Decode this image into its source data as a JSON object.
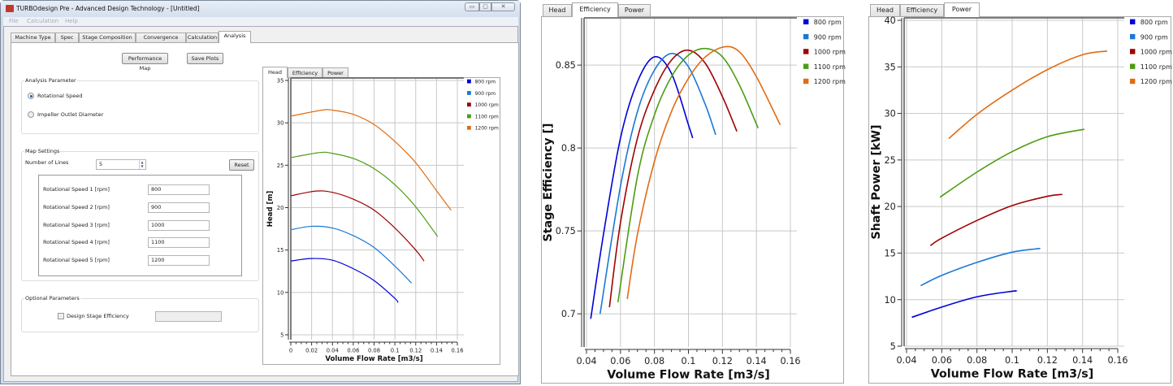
{
  "window": {
    "title": "TURBOdesign Pre - Advanced Design Technology - [Untitled]",
    "controls": {
      "minimize": "▭",
      "maximize": "▢",
      "close": "✕"
    },
    "menu": [
      "File",
      "Calculation",
      "Help"
    ],
    "tabs": [
      "Machine Type",
      "Spec",
      "Stage Composition",
      "Convergence",
      "Calculation",
      "Analysis"
    ],
    "active_tab": "Analysis"
  },
  "analysis": {
    "performance_map_button": "Performance Map",
    "save_plots_button": "Save Plots",
    "analysis_parameter": {
      "label": "Analysis Parameter",
      "options": [
        "Rotational Speed",
        "Impeller Outlet Diameter"
      ],
      "selected": "Rotational Speed"
    },
    "map_settings": {
      "label": "Map Settings",
      "number_of_lines_label": "Number of Lines",
      "number_of_lines": "5",
      "reset_button": "Reset",
      "speeds": [
        {
          "label": "Rotational Speed 1 [rpm]",
          "value": "800"
        },
        {
          "label": "Rotational Speed 2 [rpm]",
          "value": "900"
        },
        {
          "label": "Rotational Speed 3 [rpm]",
          "value": "1000"
        },
        {
          "label": "Rotational Speed 4 [rpm]",
          "value": "1100"
        },
        {
          "label": "Rotational Speed 5 [rpm]",
          "value": "1200"
        }
      ]
    },
    "optional": {
      "label": "Optional Parameters",
      "design_stage_efficiency_label": "Design Stage Efficiency",
      "design_stage_efficiency_checked": false,
      "design_stage_efficiency_value": ""
    }
  },
  "plot_tabs": [
    "Head",
    "Efficiency",
    "Power"
  ],
  "chart_data": [
    {
      "type": "line",
      "active_tab": "Head",
      "xlabel": "Volume Flow Rate [m3/s]",
      "ylabel": "Head [m]",
      "xlim": [
        0,
        0.16
      ],
      "ylim": [
        5,
        35
      ],
      "xticks": [
        "0",
        "0.02",
        "0.04",
        "0.06",
        "0.08",
        "0.1",
        "0.12",
        "0.14",
        "0.16"
      ],
      "yticks": [
        "5",
        "10",
        "15",
        "20",
        "25",
        "30",
        "35"
      ],
      "grid": true,
      "legend": "right",
      "series": [
        {
          "name": "800 rpm",
          "color": "#0000d8",
          "x": [
            0,
            0.02,
            0.04,
            0.06,
            0.08,
            0.1,
            0.103
          ],
          "y": [
            13.7,
            14.0,
            13.8,
            12.8,
            11.4,
            9.3,
            8.8
          ]
        },
        {
          "name": "900 rpm",
          "color": "#1a78d8",
          "x": [
            0,
            0.02,
            0.04,
            0.06,
            0.08,
            0.1,
            0.116
          ],
          "y": [
            17.4,
            17.8,
            17.6,
            16.7,
            15.3,
            13.1,
            11.1
          ]
        },
        {
          "name": "1000 rpm",
          "color": "#a00000",
          "x": [
            0,
            0.024,
            0.04,
            0.06,
            0.08,
            0.1,
            0.12,
            0.128
          ],
          "y": [
            21.4,
            21.95,
            21.8,
            21.0,
            19.7,
            17.6,
            15.0,
            13.7
          ]
        },
        {
          "name": "1100 rpm",
          "color": "#4c9c12",
          "x": [
            0,
            0.028,
            0.04,
            0.06,
            0.08,
            0.1,
            0.12,
            0.141
          ],
          "y": [
            25.9,
            26.5,
            26.4,
            25.8,
            24.6,
            22.7,
            20.1,
            16.6
          ]
        },
        {
          "name": "1200 rpm",
          "color": "#e06c14",
          "x": [
            0,
            0.03,
            0.04,
            0.06,
            0.08,
            0.1,
            0.12,
            0.14,
            0.154
          ],
          "y": [
            30.8,
            31.5,
            31.5,
            31.0,
            29.8,
            27.8,
            25.3,
            22.0,
            19.7
          ]
        }
      ]
    },
    {
      "type": "line",
      "active_tab": "Efficiency",
      "xlabel": "Volume Flow Rate [m3/s]",
      "ylabel": "Stage Efficiency []",
      "xlim": [
        0.04,
        0.16
      ],
      "ylim": [
        0.68,
        0.878
      ],
      "xticks": [
        "0.04",
        "0.06",
        "0.08",
        "0.1",
        "0.12",
        "0.14",
        "0.16"
      ],
      "yticks": [
        "0.7",
        "0.75",
        "0.8",
        "0.85"
      ],
      "grid": true,
      "legend": "right",
      "series": [
        {
          "name": "800 rpm",
          "color": "#0000d8",
          "x": [
            0.0425,
            0.05,
            0.06,
            0.07,
            0.08,
            0.09,
            0.1,
            0.1025
          ],
          "y": [
            0.697,
            0.748,
            0.806,
            0.84,
            0.855,
            0.845,
            0.814,
            0.806
          ]
        },
        {
          "name": "900 rpm",
          "color": "#1a78d8",
          "x": [
            0.048,
            0.06,
            0.07,
            0.08,
            0.09,
            0.1,
            0.11,
            0.116
          ],
          "y": [
            0.7,
            0.777,
            0.822,
            0.847,
            0.857,
            0.849,
            0.826,
            0.808
          ]
        },
        {
          "name": "1000 rpm",
          "color": "#a00000",
          "x": [
            0.0535,
            0.06,
            0.07,
            0.08,
            0.09,
            0.1,
            0.11,
            0.12,
            0.1285
          ],
          "y": [
            0.704,
            0.755,
            0.806,
            0.835,
            0.853,
            0.859,
            0.851,
            0.831,
            0.81
          ]
        },
        {
          "name": "1100 rpm",
          "color": "#4c9c12",
          "x": [
            0.0585,
            0.07,
            0.08,
            0.09,
            0.1,
            0.11,
            0.12,
            0.13,
            0.141
          ],
          "y": [
            0.707,
            0.783,
            0.82,
            0.843,
            0.856,
            0.86,
            0.855,
            0.838,
            0.812
          ]
        },
        {
          "name": "1200 rpm",
          "color": "#e06c14",
          "x": [
            0.064,
            0.07,
            0.08,
            0.09,
            0.1,
            0.11,
            0.121,
            0.13,
            0.14,
            0.154
          ],
          "y": [
            0.709,
            0.748,
            0.792,
            0.822,
            0.842,
            0.855,
            0.861,
            0.858,
            0.843,
            0.814
          ]
        }
      ]
    },
    {
      "type": "line",
      "active_tab": "Power",
      "xlabel": "Volume Flow Rate [m3/s]",
      "ylabel": "Shaft Power [kW]",
      "xlim": [
        0.04,
        0.16
      ],
      "ylim": [
        5,
        40
      ],
      "xticks": [
        "0.04",
        "0.06",
        "0.08",
        "0.1",
        "0.12",
        "0.14",
        "0.16"
      ],
      "yticks": [
        "5",
        "10",
        "15",
        "20",
        "25",
        "30",
        "35",
        "40"
      ],
      "grid": true,
      "legend": "right",
      "series": [
        {
          "name": "800 rpm",
          "color": "#0000d8",
          "x": [
            0.043,
            0.06,
            0.08,
            0.1,
            0.1025
          ],
          "y": [
            8.1,
            9.2,
            10.3,
            10.9,
            10.9
          ]
        },
        {
          "name": "900 rpm",
          "color": "#1a78d8",
          "x": [
            0.048,
            0.06,
            0.08,
            0.1,
            0.116
          ],
          "y": [
            11.5,
            12.6,
            14.0,
            15.1,
            15.5
          ]
        },
        {
          "name": "1000 rpm",
          "color": "#a00000",
          "x": [
            0.0535,
            0.06,
            0.08,
            0.1,
            0.12,
            0.1285
          ],
          "y": [
            15.8,
            16.6,
            18.5,
            20.1,
            21.1,
            21.3
          ]
        },
        {
          "name": "1100 rpm",
          "color": "#4c9c12",
          "x": [
            0.059,
            0.08,
            0.1,
            0.12,
            0.141
          ],
          "y": [
            21.0,
            23.7,
            25.9,
            27.5,
            28.3
          ]
        },
        {
          "name": "1200 rpm",
          "color": "#e06c14",
          "x": [
            0.064,
            0.08,
            0.1,
            0.12,
            0.14,
            0.154
          ],
          "y": [
            27.3,
            29.9,
            32.5,
            34.7,
            36.3,
            36.7
          ]
        }
      ]
    }
  ]
}
